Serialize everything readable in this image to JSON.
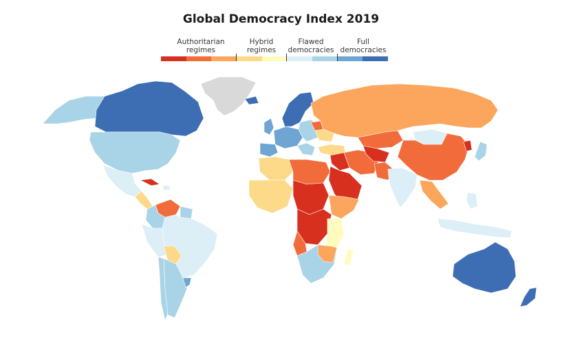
{
  "title": "Global Democracy Index 2019",
  "legend": {
    "categories": [
      {
        "line1": "Authoritarian",
        "line2": "regimes"
      },
      {
        "line1": "Hybrid",
        "line2": "regimes"
      },
      {
        "line1": "Flawed",
        "line2": "democracies"
      },
      {
        "line1": "Full",
        "line2": "democracies"
      }
    ],
    "colors": [
      "#d7301f",
      "#f26b3a",
      "#fba65c",
      "#fdd98a",
      "#fffbbd",
      "#dceef6",
      "#a9d3e6",
      "#6fa5d3",
      "#3d6eb3"
    ]
  },
  "colors": {
    "no_data": "#d9d9d9",
    "full": "#3d6eb3",
    "full_light": "#6fa5d3",
    "flawed": "#a9d3e6",
    "flawed_light": "#dceef6",
    "hybrid_light": "#fffbbd",
    "hybrid": "#fdd98a",
    "auth_light": "#fba65c",
    "auth": "#f26b3a",
    "auth_dark": "#d7301f"
  }
}
